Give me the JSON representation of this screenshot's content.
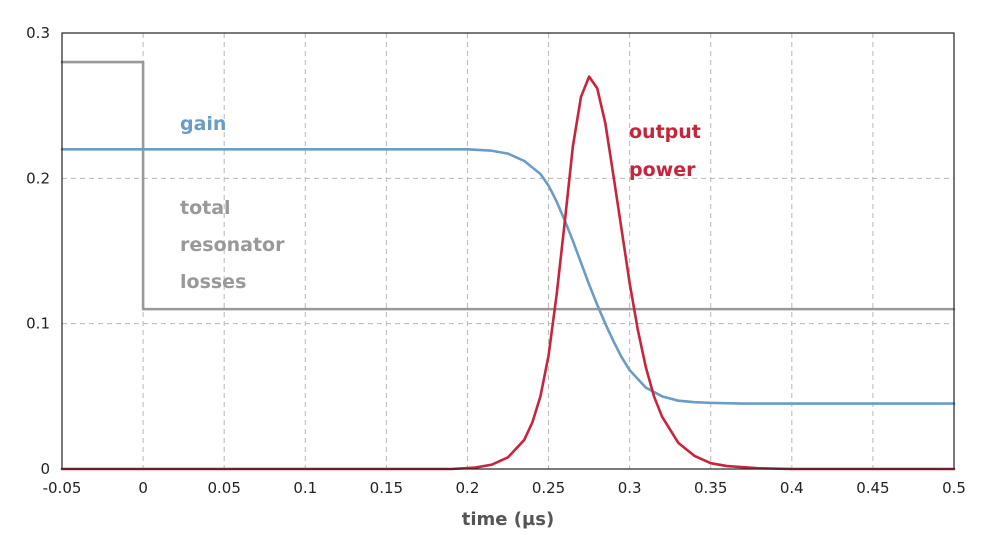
{
  "chart_data": {
    "type": "line",
    "xlabel": "time (µs)",
    "ylabel": "",
    "xlim": [
      -0.05,
      0.5
    ],
    "ylim": [
      0,
      0.3
    ],
    "grid": true,
    "x_ticks": [
      "-0.05",
      "0",
      "0.05",
      "0.1",
      "0.15",
      "0.2",
      "0.25",
      "0.3",
      "0.35",
      "0.4",
      "0.45",
      "0.5"
    ],
    "y_ticks": [
      "0",
      "0.1",
      "0.2",
      "0.3"
    ],
    "series": [
      {
        "name": "gain",
        "label_lines": [
          "gain"
        ],
        "color": "#6b9bc8",
        "x": [
          -0.05,
          0.2,
          0.215,
          0.225,
          0.235,
          0.245,
          0.25,
          0.255,
          0.26,
          0.265,
          0.27,
          0.275,
          0.28,
          0.285,
          0.29,
          0.295,
          0.3,
          0.31,
          0.32,
          0.33,
          0.34,
          0.35,
          0.37,
          0.4,
          0.45,
          0.5
        ],
        "y": [
          0.22,
          0.22,
          0.219,
          0.217,
          0.212,
          0.203,
          0.195,
          0.184,
          0.171,
          0.157,
          0.142,
          0.127,
          0.113,
          0.1,
          0.088,
          0.077,
          0.068,
          0.056,
          0.05,
          0.047,
          0.046,
          0.0455,
          0.045,
          0.045,
          0.045,
          0.045
        ]
      },
      {
        "name": "total resonator losses",
        "label_lines": [
          "total",
          "resonator",
          "losses"
        ],
        "color": "#999999",
        "x": [
          -0.05,
          0,
          0,
          0.5
        ],
        "y": [
          0.28,
          0.28,
          0.11,
          0.11
        ]
      },
      {
        "name": "output power",
        "label_lines": [
          "output",
          "power"
        ],
        "color": "#c8243c",
        "x": [
          -0.05,
          0.19,
          0.205,
          0.215,
          0.225,
          0.235,
          0.24,
          0.245,
          0.25,
          0.255,
          0.26,
          0.265,
          0.27,
          0.275,
          0.28,
          0.285,
          0.29,
          0.295,
          0.3,
          0.305,
          0.31,
          0.315,
          0.32,
          0.33,
          0.34,
          0.35,
          0.36,
          0.38,
          0.4,
          0.45,
          0.5
        ],
        "y": [
          0,
          0,
          0.001,
          0.003,
          0.008,
          0.02,
          0.032,
          0.05,
          0.078,
          0.12,
          0.17,
          0.222,
          0.256,
          0.27,
          0.262,
          0.238,
          0.202,
          0.165,
          0.128,
          0.096,
          0.07,
          0.05,
          0.036,
          0.018,
          0.009,
          0.004,
          0.002,
          0.0005,
          0,
          0,
          0
        ]
      }
    ]
  }
}
